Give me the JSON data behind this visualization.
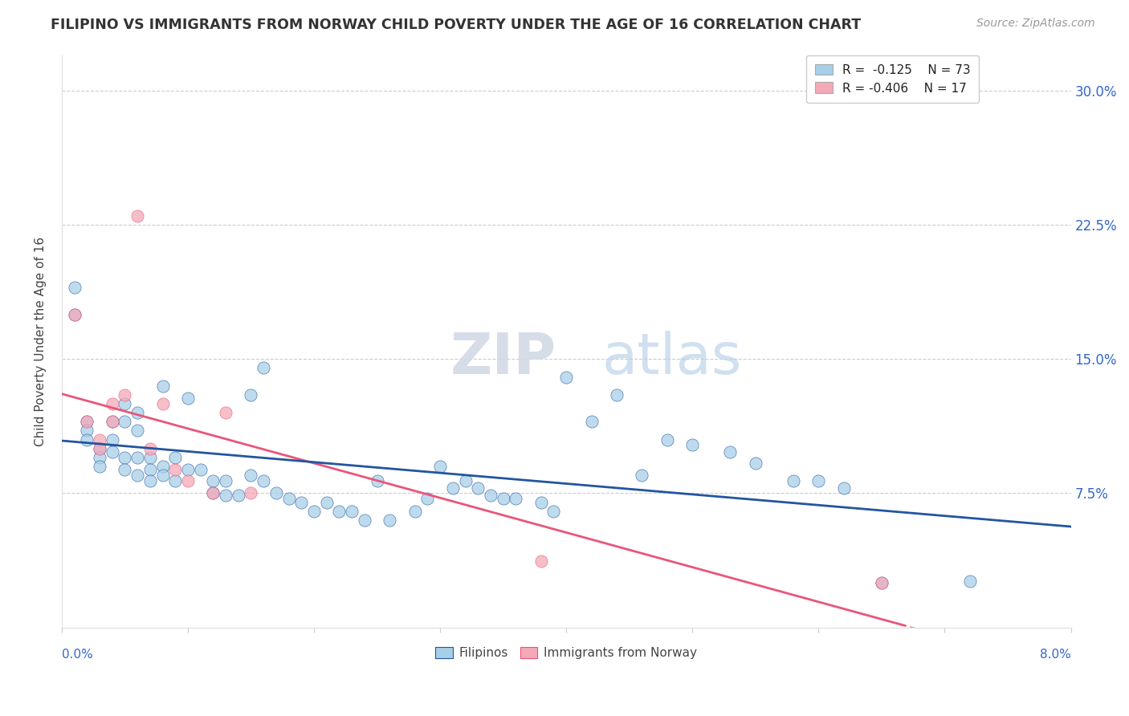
{
  "title": "FILIPINO VS IMMIGRANTS FROM NORWAY CHILD POVERTY UNDER THE AGE OF 16 CORRELATION CHART",
  "source_text": "Source: ZipAtlas.com",
  "ylabel": "Child Poverty Under the Age of 16",
  "ytick_vals": [
    0.075,
    0.15,
    0.225,
    0.3
  ],
  "xmin": 0.0,
  "xmax": 0.08,
  "ymin": 0.0,
  "ymax": 0.32,
  "watermark_zip": "ZIP",
  "watermark_atlas": "atlas",
  "legend_label1": "Filipinos",
  "legend_label2": "Immigrants from Norway",
  "color_filipino": "#a8cfe8",
  "color_norway": "#f4a8b8",
  "color_line_filipino": "#2355a0",
  "color_line_norway": "#e8567a",
  "filipino_x": [
    0.001,
    0.001,
    0.002,
    0.002,
    0.002,
    0.003,
    0.003,
    0.003,
    0.004,
    0.004,
    0.004,
    0.005,
    0.005,
    0.005,
    0.005,
    0.006,
    0.006,
    0.006,
    0.006,
    0.007,
    0.007,
    0.007,
    0.008,
    0.008,
    0.008,
    0.009,
    0.009,
    0.01,
    0.01,
    0.011,
    0.012,
    0.012,
    0.013,
    0.013,
    0.014,
    0.015,
    0.015,
    0.016,
    0.016,
    0.017,
    0.018,
    0.019,
    0.02,
    0.021,
    0.022,
    0.023,
    0.024,
    0.025,
    0.026,
    0.028,
    0.029,
    0.03,
    0.031,
    0.032,
    0.033,
    0.034,
    0.035,
    0.036,
    0.038,
    0.039,
    0.04,
    0.042,
    0.044,
    0.046,
    0.048,
    0.05,
    0.053,
    0.055,
    0.058,
    0.06,
    0.062,
    0.065,
    0.072
  ],
  "filipino_y": [
    0.19,
    0.175,
    0.115,
    0.11,
    0.105,
    0.1,
    0.095,
    0.09,
    0.115,
    0.105,
    0.098,
    0.125,
    0.115,
    0.095,
    0.088,
    0.12,
    0.11,
    0.095,
    0.085,
    0.095,
    0.088,
    0.082,
    0.135,
    0.09,
    0.085,
    0.095,
    0.082,
    0.128,
    0.088,
    0.088,
    0.082,
    0.075,
    0.082,
    0.074,
    0.074,
    0.13,
    0.085,
    0.145,
    0.082,
    0.075,
    0.072,
    0.07,
    0.065,
    0.07,
    0.065,
    0.065,
    0.06,
    0.082,
    0.06,
    0.065,
    0.072,
    0.09,
    0.078,
    0.082,
    0.078,
    0.074,
    0.072,
    0.072,
    0.07,
    0.065,
    0.14,
    0.115,
    0.13,
    0.085,
    0.105,
    0.102,
    0.098,
    0.092,
    0.082,
    0.082,
    0.078,
    0.025,
    0.026
  ],
  "norway_x": [
    0.001,
    0.002,
    0.003,
    0.003,
    0.004,
    0.004,
    0.005,
    0.006,
    0.007,
    0.008,
    0.009,
    0.01,
    0.012,
    0.013,
    0.015,
    0.038,
    0.065
  ],
  "norway_y": [
    0.175,
    0.115,
    0.105,
    0.1,
    0.125,
    0.115,
    0.13,
    0.23,
    0.1,
    0.125,
    0.088,
    0.082,
    0.075,
    0.12,
    0.075,
    0.037,
    0.025
  ]
}
